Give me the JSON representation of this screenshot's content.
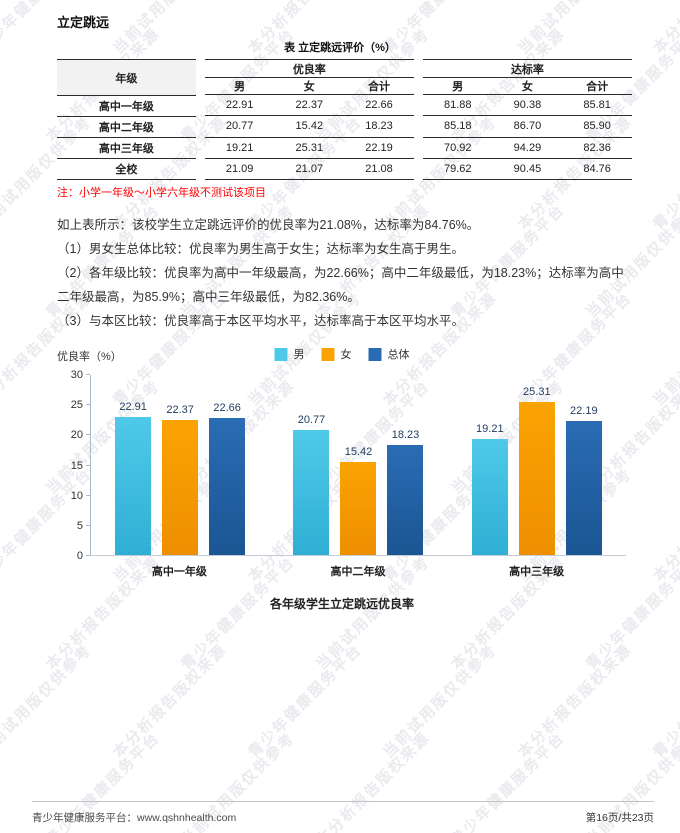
{
  "page": {
    "title": "立定跳远",
    "footer_left": "青少年健康服务平台：www.qshnhealth.com",
    "footer_right": "第16页/共23页"
  },
  "watermark": {
    "phrases": [
      "青少年健康服务平台",
      "当前试用版仅供参考",
      "本分析报告版权来源"
    ],
    "color": "#eaeaef"
  },
  "table": {
    "title": "表 立定跳远评价（%）",
    "row_header": "年级",
    "groups": [
      {
        "label": "优良率",
        "cols": [
          "男",
          "女",
          "合计"
        ]
      },
      {
        "label": "达标率",
        "cols": [
          "男",
          "女",
          "合计"
        ]
      }
    ],
    "rows": [
      {
        "label": "高中一年级",
        "excellent": [
          "22.91",
          "22.37",
          "22.66"
        ],
        "qualified": [
          "81.88",
          "90.38",
          "85.81"
        ]
      },
      {
        "label": "高中二年级",
        "excellent": [
          "20.77",
          "15.42",
          "18.23"
        ],
        "qualified": [
          "85.18",
          "86.70",
          "85.90"
        ]
      },
      {
        "label": "高中三年级",
        "excellent": [
          "19.21",
          "25.31",
          "22.19"
        ],
        "qualified": [
          "70.92",
          "94.29",
          "82.36"
        ]
      },
      {
        "label": "全校",
        "excellent": [
          "21.09",
          "21.07",
          "21.08"
        ],
        "qualified": [
          "79.62",
          "90.45",
          "84.76"
        ]
      }
    ],
    "note": "注：小学一年级～小学六年级不测试该项目"
  },
  "paragraphs": [
    "如上表所示：该校学生立定跳远评价的优良率为21.08%，达标率为84.76%。",
    "（1）男女生总体比较：优良率为男生高于女生；达标率为女生高于男生。",
    "（2）各年级比较：优良率为高中一年级最高，为22.66%；高中二年级最低，为18.23%；达标率为高中二年级最高，为85.9%；高中三年级最低，为82.36%。",
    "（3）与本区比较：优良率高于本区平均水平，达标率高于本区平均水平。"
  ],
  "chart_data": {
    "type": "bar",
    "title": "各年级学生立定跳远优良率",
    "ylabel": "优良率（%）",
    "xlabel": "",
    "categories": [
      "高中一年级",
      "高中二年级",
      "高中三年级"
    ],
    "series": [
      {
        "name": "男",
        "color": "#4fc9e9",
        "color2": "#2fafd4",
        "values": [
          22.91,
          20.77,
          19.21
        ]
      },
      {
        "name": "女",
        "color": "#fba304",
        "color2": "#ee8f00",
        "values": [
          22.37,
          15.42,
          25.31
        ]
      },
      {
        "name": "总体",
        "color": "#2a6cb4",
        "color2": "#1b5593",
        "values": [
          22.66,
          18.23,
          22.19
        ]
      }
    ],
    "ylim": [
      0,
      30
    ],
    "yticks": [
      0,
      5,
      10,
      15,
      20,
      25,
      30
    ],
    "grid": false,
    "legend_position": "top",
    "data_labels": true
  }
}
